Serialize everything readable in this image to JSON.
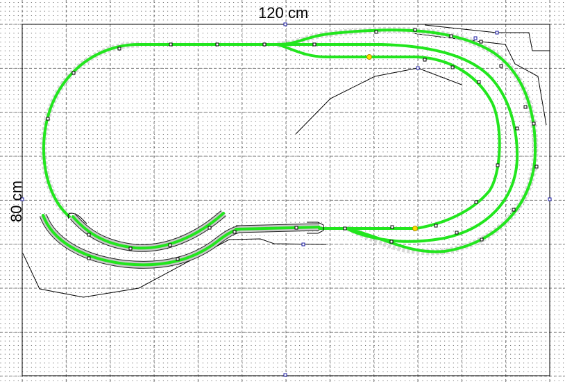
{
  "board": {
    "width_label": "120 cm",
    "height_label": "80 cm",
    "width_cm": 120,
    "height_cm": 80,
    "grid_major_cm": 10,
    "grid_dot_cm": 1
  },
  "colors": {
    "track": "#22e61e",
    "track_bed": "#c8c8c8",
    "handle": "#1a1aa0",
    "marker": "#ffe000"
  }
}
